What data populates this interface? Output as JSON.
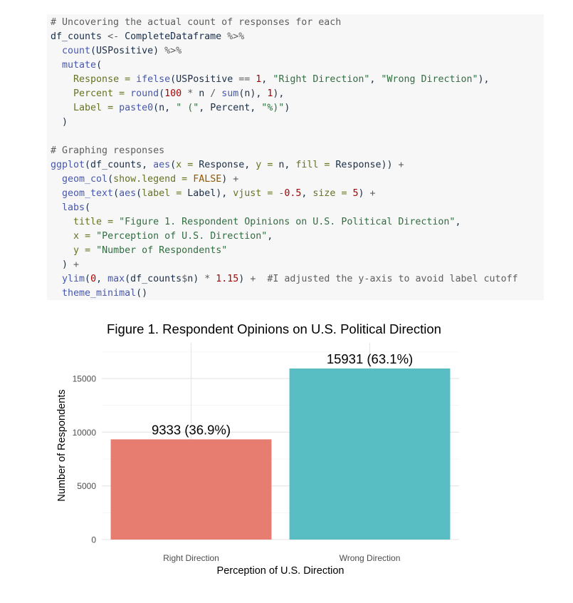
{
  "code": [
    [
      {
        "t": "cm",
        "v": "# Uncovering the actual count of responses for each"
      }
    ],
    [
      {
        "t": "",
        "v": "df_counts "
      },
      {
        "t": "op",
        "v": "<-"
      },
      {
        "t": "",
        "v": " CompleteDataframe "
      },
      {
        "t": "op",
        "v": "%>%"
      }
    ],
    [
      {
        "t": "",
        "v": "  "
      },
      {
        "t": "fn",
        "v": "count"
      },
      {
        "t": "",
        "v": "(USPositive) "
      },
      {
        "t": "op",
        "v": "%>%"
      }
    ],
    [
      {
        "t": "",
        "v": "  "
      },
      {
        "t": "fn",
        "v": "mutate"
      },
      {
        "t": "",
        "v": "("
      }
    ],
    [
      {
        "t": "",
        "v": "    "
      },
      {
        "t": "ar",
        "v": "Response"
      },
      {
        "t": "",
        "v": " "
      },
      {
        "t": "ar",
        "v": "="
      },
      {
        "t": "",
        "v": " "
      },
      {
        "t": "fn",
        "v": "ifelse"
      },
      {
        "t": "",
        "v": "(USPositive "
      },
      {
        "t": "op",
        "v": "=="
      },
      {
        "t": "",
        "v": " "
      },
      {
        "t": "nu",
        "v": "1"
      },
      {
        "t": "",
        "v": ", "
      },
      {
        "t": "st",
        "v": "\"Right Direction\""
      },
      {
        "t": "",
        "v": ", "
      },
      {
        "t": "st",
        "v": "\"Wrong Direction\""
      },
      {
        "t": "",
        "v": "),"
      }
    ],
    [
      {
        "t": "",
        "v": "    "
      },
      {
        "t": "ar",
        "v": "Percent"
      },
      {
        "t": "",
        "v": " "
      },
      {
        "t": "ar",
        "v": "="
      },
      {
        "t": "",
        "v": " "
      },
      {
        "t": "fn",
        "v": "round"
      },
      {
        "t": "",
        "v": "("
      },
      {
        "t": "nu",
        "v": "100"
      },
      {
        "t": "",
        "v": " "
      },
      {
        "t": "op",
        "v": "*"
      },
      {
        "t": "",
        "v": " n "
      },
      {
        "t": "op",
        "v": "/"
      },
      {
        "t": "",
        "v": " "
      },
      {
        "t": "fn",
        "v": "sum"
      },
      {
        "t": "",
        "v": "(n), "
      },
      {
        "t": "nu",
        "v": "1"
      },
      {
        "t": "",
        "v": "),"
      }
    ],
    [
      {
        "t": "",
        "v": "    "
      },
      {
        "t": "ar",
        "v": "Label"
      },
      {
        "t": "",
        "v": " "
      },
      {
        "t": "ar",
        "v": "="
      },
      {
        "t": "",
        "v": " "
      },
      {
        "t": "fn",
        "v": "paste0"
      },
      {
        "t": "",
        "v": "(n, "
      },
      {
        "t": "st",
        "v": "\" (\""
      },
      {
        "t": "",
        "v": ", Percent, "
      },
      {
        "t": "st",
        "v": "\"%)\""
      },
      {
        "t": "",
        "v": ")"
      }
    ],
    [
      {
        "t": "",
        "v": "  )"
      }
    ],
    [],
    [
      {
        "t": "cm",
        "v": "# Graphing responses"
      }
    ],
    [
      {
        "t": "fn",
        "v": "ggplot"
      },
      {
        "t": "",
        "v": "(df_counts, "
      },
      {
        "t": "fn",
        "v": "aes"
      },
      {
        "t": "",
        "v": "("
      },
      {
        "t": "ar",
        "v": "x"
      },
      {
        "t": "",
        "v": " "
      },
      {
        "t": "ar",
        "v": "="
      },
      {
        "t": "",
        "v": " Response, "
      },
      {
        "t": "ar",
        "v": "y"
      },
      {
        "t": "",
        "v": " "
      },
      {
        "t": "ar",
        "v": "="
      },
      {
        "t": "",
        "v": " n, "
      },
      {
        "t": "ar",
        "v": "fill"
      },
      {
        "t": "",
        "v": " "
      },
      {
        "t": "ar",
        "v": "="
      },
      {
        "t": "",
        "v": " Response)) "
      },
      {
        "t": "op",
        "v": "+"
      }
    ],
    [
      {
        "t": "",
        "v": "  "
      },
      {
        "t": "fn",
        "v": "geom_col"
      },
      {
        "t": "",
        "v": "("
      },
      {
        "t": "ar",
        "v": "show.legend"
      },
      {
        "t": "",
        "v": " "
      },
      {
        "t": "ar",
        "v": "="
      },
      {
        "t": "",
        "v": " "
      },
      {
        "t": "kw",
        "v": "FALSE"
      },
      {
        "t": "",
        "v": ") "
      },
      {
        "t": "op",
        "v": "+"
      }
    ],
    [
      {
        "t": "",
        "v": "  "
      },
      {
        "t": "fn",
        "v": "geom_text"
      },
      {
        "t": "",
        "v": "("
      },
      {
        "t": "fn",
        "v": "aes"
      },
      {
        "t": "",
        "v": "("
      },
      {
        "t": "ar",
        "v": "label"
      },
      {
        "t": "",
        "v": " "
      },
      {
        "t": "ar",
        "v": "="
      },
      {
        "t": "",
        "v": " Label), "
      },
      {
        "t": "ar",
        "v": "vjust"
      },
      {
        "t": "",
        "v": " "
      },
      {
        "t": "ar",
        "v": "="
      },
      {
        "t": "",
        "v": " "
      },
      {
        "t": "op",
        "v": "-"
      },
      {
        "t": "nu",
        "v": "0.5"
      },
      {
        "t": "",
        "v": ", "
      },
      {
        "t": "ar",
        "v": "size"
      },
      {
        "t": "",
        "v": " "
      },
      {
        "t": "ar",
        "v": "="
      },
      {
        "t": "",
        "v": " "
      },
      {
        "t": "nu",
        "v": "5"
      },
      {
        "t": "",
        "v": ") "
      },
      {
        "t": "op",
        "v": "+"
      }
    ],
    [
      {
        "t": "",
        "v": "  "
      },
      {
        "t": "fn",
        "v": "labs"
      },
      {
        "t": "",
        "v": "("
      }
    ],
    [
      {
        "t": "",
        "v": "    "
      },
      {
        "t": "ar",
        "v": "title"
      },
      {
        "t": "",
        "v": " "
      },
      {
        "t": "ar",
        "v": "="
      },
      {
        "t": "",
        "v": " "
      },
      {
        "t": "st",
        "v": "\"Figure 1. Respondent Opinions on U.S. Political Direction\""
      },
      {
        "t": "",
        "v": ","
      }
    ],
    [
      {
        "t": "",
        "v": "    "
      },
      {
        "t": "ar",
        "v": "x"
      },
      {
        "t": "",
        "v": " "
      },
      {
        "t": "ar",
        "v": "="
      },
      {
        "t": "",
        "v": " "
      },
      {
        "t": "st",
        "v": "\"Perception of U.S. Direction\""
      },
      {
        "t": "",
        "v": ","
      }
    ],
    [
      {
        "t": "",
        "v": "    "
      },
      {
        "t": "ar",
        "v": "y"
      },
      {
        "t": "",
        "v": " "
      },
      {
        "t": "ar",
        "v": "="
      },
      {
        "t": "",
        "v": " "
      },
      {
        "t": "st",
        "v": "\"Number of Respondents\""
      }
    ],
    [
      {
        "t": "",
        "v": "  ) "
      },
      {
        "t": "op",
        "v": "+"
      }
    ],
    [
      {
        "t": "",
        "v": "  "
      },
      {
        "t": "fn",
        "v": "ylim"
      },
      {
        "t": "",
        "v": "("
      },
      {
        "t": "nu",
        "v": "0"
      },
      {
        "t": "",
        "v": ", "
      },
      {
        "t": "fn",
        "v": "max"
      },
      {
        "t": "",
        "v": "(df_counts"
      },
      {
        "t": "op",
        "v": "$"
      },
      {
        "t": "",
        "v": "n) "
      },
      {
        "t": "op",
        "v": "*"
      },
      {
        "t": "",
        "v": " "
      },
      {
        "t": "nu",
        "v": "1.15"
      },
      {
        "t": "",
        "v": ") "
      },
      {
        "t": "op",
        "v": "+"
      },
      {
        "t": "",
        "v": "  "
      },
      {
        "t": "cm",
        "v": "#I adjusted the y-axis to avoid label cutoff"
      }
    ],
    [
      {
        "t": "",
        "v": "  "
      },
      {
        "t": "fn",
        "v": "theme_minimal"
      },
      {
        "t": "",
        "v": "()"
      }
    ]
  ],
  "chart_data": {
    "type": "bar",
    "title": "Figure 1. Respondent Opinions on U.S. Political Direction",
    "xlabel": "Perception of U.S. Direction",
    "ylabel": "Number of Respondents",
    "categories": [
      "Right Direction",
      "Wrong Direction"
    ],
    "values": [
      9333,
      15931
    ],
    "labels": [
      "9333 (36.9%)",
      "15931 (63.1%)"
    ],
    "colors": [
      "#e77c70",
      "#58bec4"
    ],
    "ylim": [
      0,
      18320.65
    ],
    "yticks": [
      0,
      5000,
      10000,
      15000
    ],
    "ytick_labels": [
      "0",
      "5000",
      "10000",
      "15000"
    ],
    "grid": true,
    "legend": "none"
  }
}
